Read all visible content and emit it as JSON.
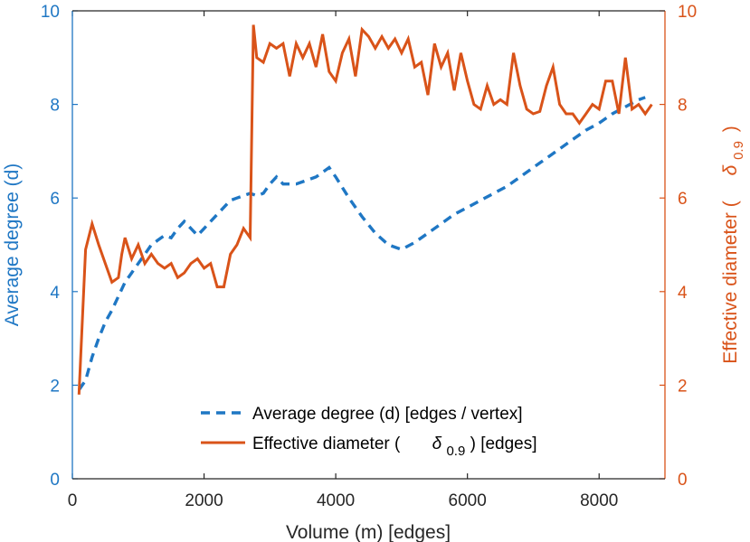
{
  "colors": {
    "degree": "#1f77c4",
    "diameter": "#d95319",
    "axis": "#262626"
  },
  "chart_data": {
    "type": "line",
    "xlabel": "Volume (m) [edges]",
    "ylabel_left": "Average degree (d)",
    "ylabel_right_prefix": "Effective diameter (",
    "ylabel_right_symbol": "δ",
    "ylabel_right_subscript": "0.9",
    "ylabel_right_suffix": ")",
    "xlim": [
      0,
      9000
    ],
    "ylim_left": [
      0,
      10
    ],
    "ylim_right": [
      0,
      10
    ],
    "xticks": [
      0,
      2000,
      4000,
      6000,
      8000
    ],
    "xtick_labels": [
      "0",
      "2000",
      "4000",
      "6000",
      "8000"
    ],
    "yticks_left": [
      0,
      2,
      4,
      6,
      8,
      10
    ],
    "ytick_labels_left": [
      "0",
      "2",
      "4",
      "6",
      "8",
      "10"
    ],
    "yticks_right": [
      0,
      2,
      4,
      6,
      8,
      10
    ],
    "ytick_labels_right": [
      "0",
      "2",
      "4",
      "6",
      "8",
      "10"
    ],
    "legend": {
      "position": "bottom-center",
      "entries": [
        {
          "label": "Average degree (d) [edges / vertex]",
          "style": "dashed"
        },
        {
          "label_prefix": "Effective diameter (",
          "label_symbol": "δ",
          "label_subscript": "0.9",
          "label_suffix": ") [edges]",
          "style": "solid"
        }
      ]
    },
    "series": [
      {
        "name": "Average degree (d) [edges / vertex]",
        "axis": "left",
        "style": "dashed",
        "x": [
          100,
          150,
          200,
          300,
          400,
          500,
          600,
          700,
          800,
          900,
          1000,
          1100,
          1200,
          1300,
          1400,
          1500,
          1600,
          1700,
          1800,
          1900,
          2000,
          2100,
          2200,
          2300,
          2400,
          2500,
          2600,
          2700,
          2800,
          2900,
          3000,
          3100,
          3200,
          3300,
          3400,
          3500,
          3600,
          3700,
          3800,
          3900,
          4000,
          4200,
          4400,
          4600,
          4800,
          5000,
          5200,
          5400,
          5600,
          5800,
          6000,
          6200,
          6400,
          6600,
          6800,
          7000,
          7200,
          7400,
          7600,
          7800,
          8000,
          8200,
          8400,
          8600,
          8700
        ],
        "values": [
          1.9,
          2.0,
          2.1,
          2.6,
          3.0,
          3.35,
          3.6,
          3.9,
          4.2,
          4.4,
          4.6,
          4.8,
          5.0,
          5.1,
          5.2,
          5.15,
          5.35,
          5.5,
          5.35,
          5.2,
          5.35,
          5.5,
          5.65,
          5.8,
          5.95,
          6.0,
          6.05,
          6.1,
          6.05,
          6.1,
          6.3,
          6.45,
          6.3,
          6.3,
          6.3,
          6.35,
          6.4,
          6.45,
          6.55,
          6.65,
          6.45,
          6.0,
          5.6,
          5.25,
          5.0,
          4.9,
          5.05,
          5.25,
          5.45,
          5.65,
          5.8,
          5.95,
          6.1,
          6.25,
          6.45,
          6.65,
          6.85,
          7.05,
          7.25,
          7.45,
          7.6,
          7.8,
          7.95,
          8.1,
          8.15
        ]
      },
      {
        "name": "Effective diameter (δ0.9) [edges]",
        "axis": "right",
        "style": "solid",
        "x": [
          100,
          200,
          300,
          400,
          500,
          600,
          700,
          750,
          800,
          900,
          1000,
          1100,
          1200,
          1300,
          1400,
          1500,
          1600,
          1700,
          1800,
          1900,
          2000,
          2100,
          2200,
          2300,
          2400,
          2500,
          2600,
          2700,
          2750,
          2800,
          2900,
          3000,
          3100,
          3200,
          3300,
          3400,
          3500,
          3600,
          3700,
          3800,
          3900,
          4000,
          4100,
          4200,
          4300,
          4400,
          4500,
          4600,
          4700,
          4800,
          4900,
          5000,
          5100,
          5200,
          5300,
          5400,
          5500,
          5600,
          5700,
          5800,
          5900,
          6000,
          6100,
          6200,
          6300,
          6400,
          6500,
          6600,
          6700,
          6800,
          6900,
          7000,
          7100,
          7200,
          7300,
          7400,
          7500,
          7600,
          7700,
          7800,
          7900,
          8000,
          8100,
          8200,
          8300,
          8400,
          8500,
          8600,
          8700,
          8800
        ],
        "values": [
          1.8,
          4.9,
          5.45,
          5.0,
          4.6,
          4.2,
          4.3,
          4.8,
          5.15,
          4.7,
          5.0,
          4.6,
          4.8,
          4.6,
          4.5,
          4.6,
          4.3,
          4.4,
          4.6,
          4.7,
          4.5,
          4.6,
          4.1,
          4.1,
          4.8,
          5.0,
          5.35,
          5.15,
          9.7,
          9.0,
          8.9,
          9.3,
          9.2,
          9.3,
          8.6,
          9.3,
          9.0,
          9.3,
          8.8,
          9.5,
          8.7,
          8.5,
          9.1,
          9.4,
          8.6,
          9.6,
          9.45,
          9.2,
          9.45,
          9.2,
          9.4,
          9.1,
          9.4,
          8.8,
          8.9,
          8.2,
          9.3,
          8.8,
          9.1,
          8.3,
          9.1,
          8.5,
          8.0,
          7.9,
          8.4,
          8.0,
          8.1,
          8.0,
          9.1,
          8.4,
          7.9,
          7.8,
          7.85,
          8.4,
          8.8,
          8.0,
          7.8,
          7.8,
          7.6,
          7.8,
          8.0,
          7.9,
          8.5,
          8.5,
          7.8,
          9.0,
          7.9,
          8.0,
          7.8,
          8.0
        ]
      }
    ]
  }
}
